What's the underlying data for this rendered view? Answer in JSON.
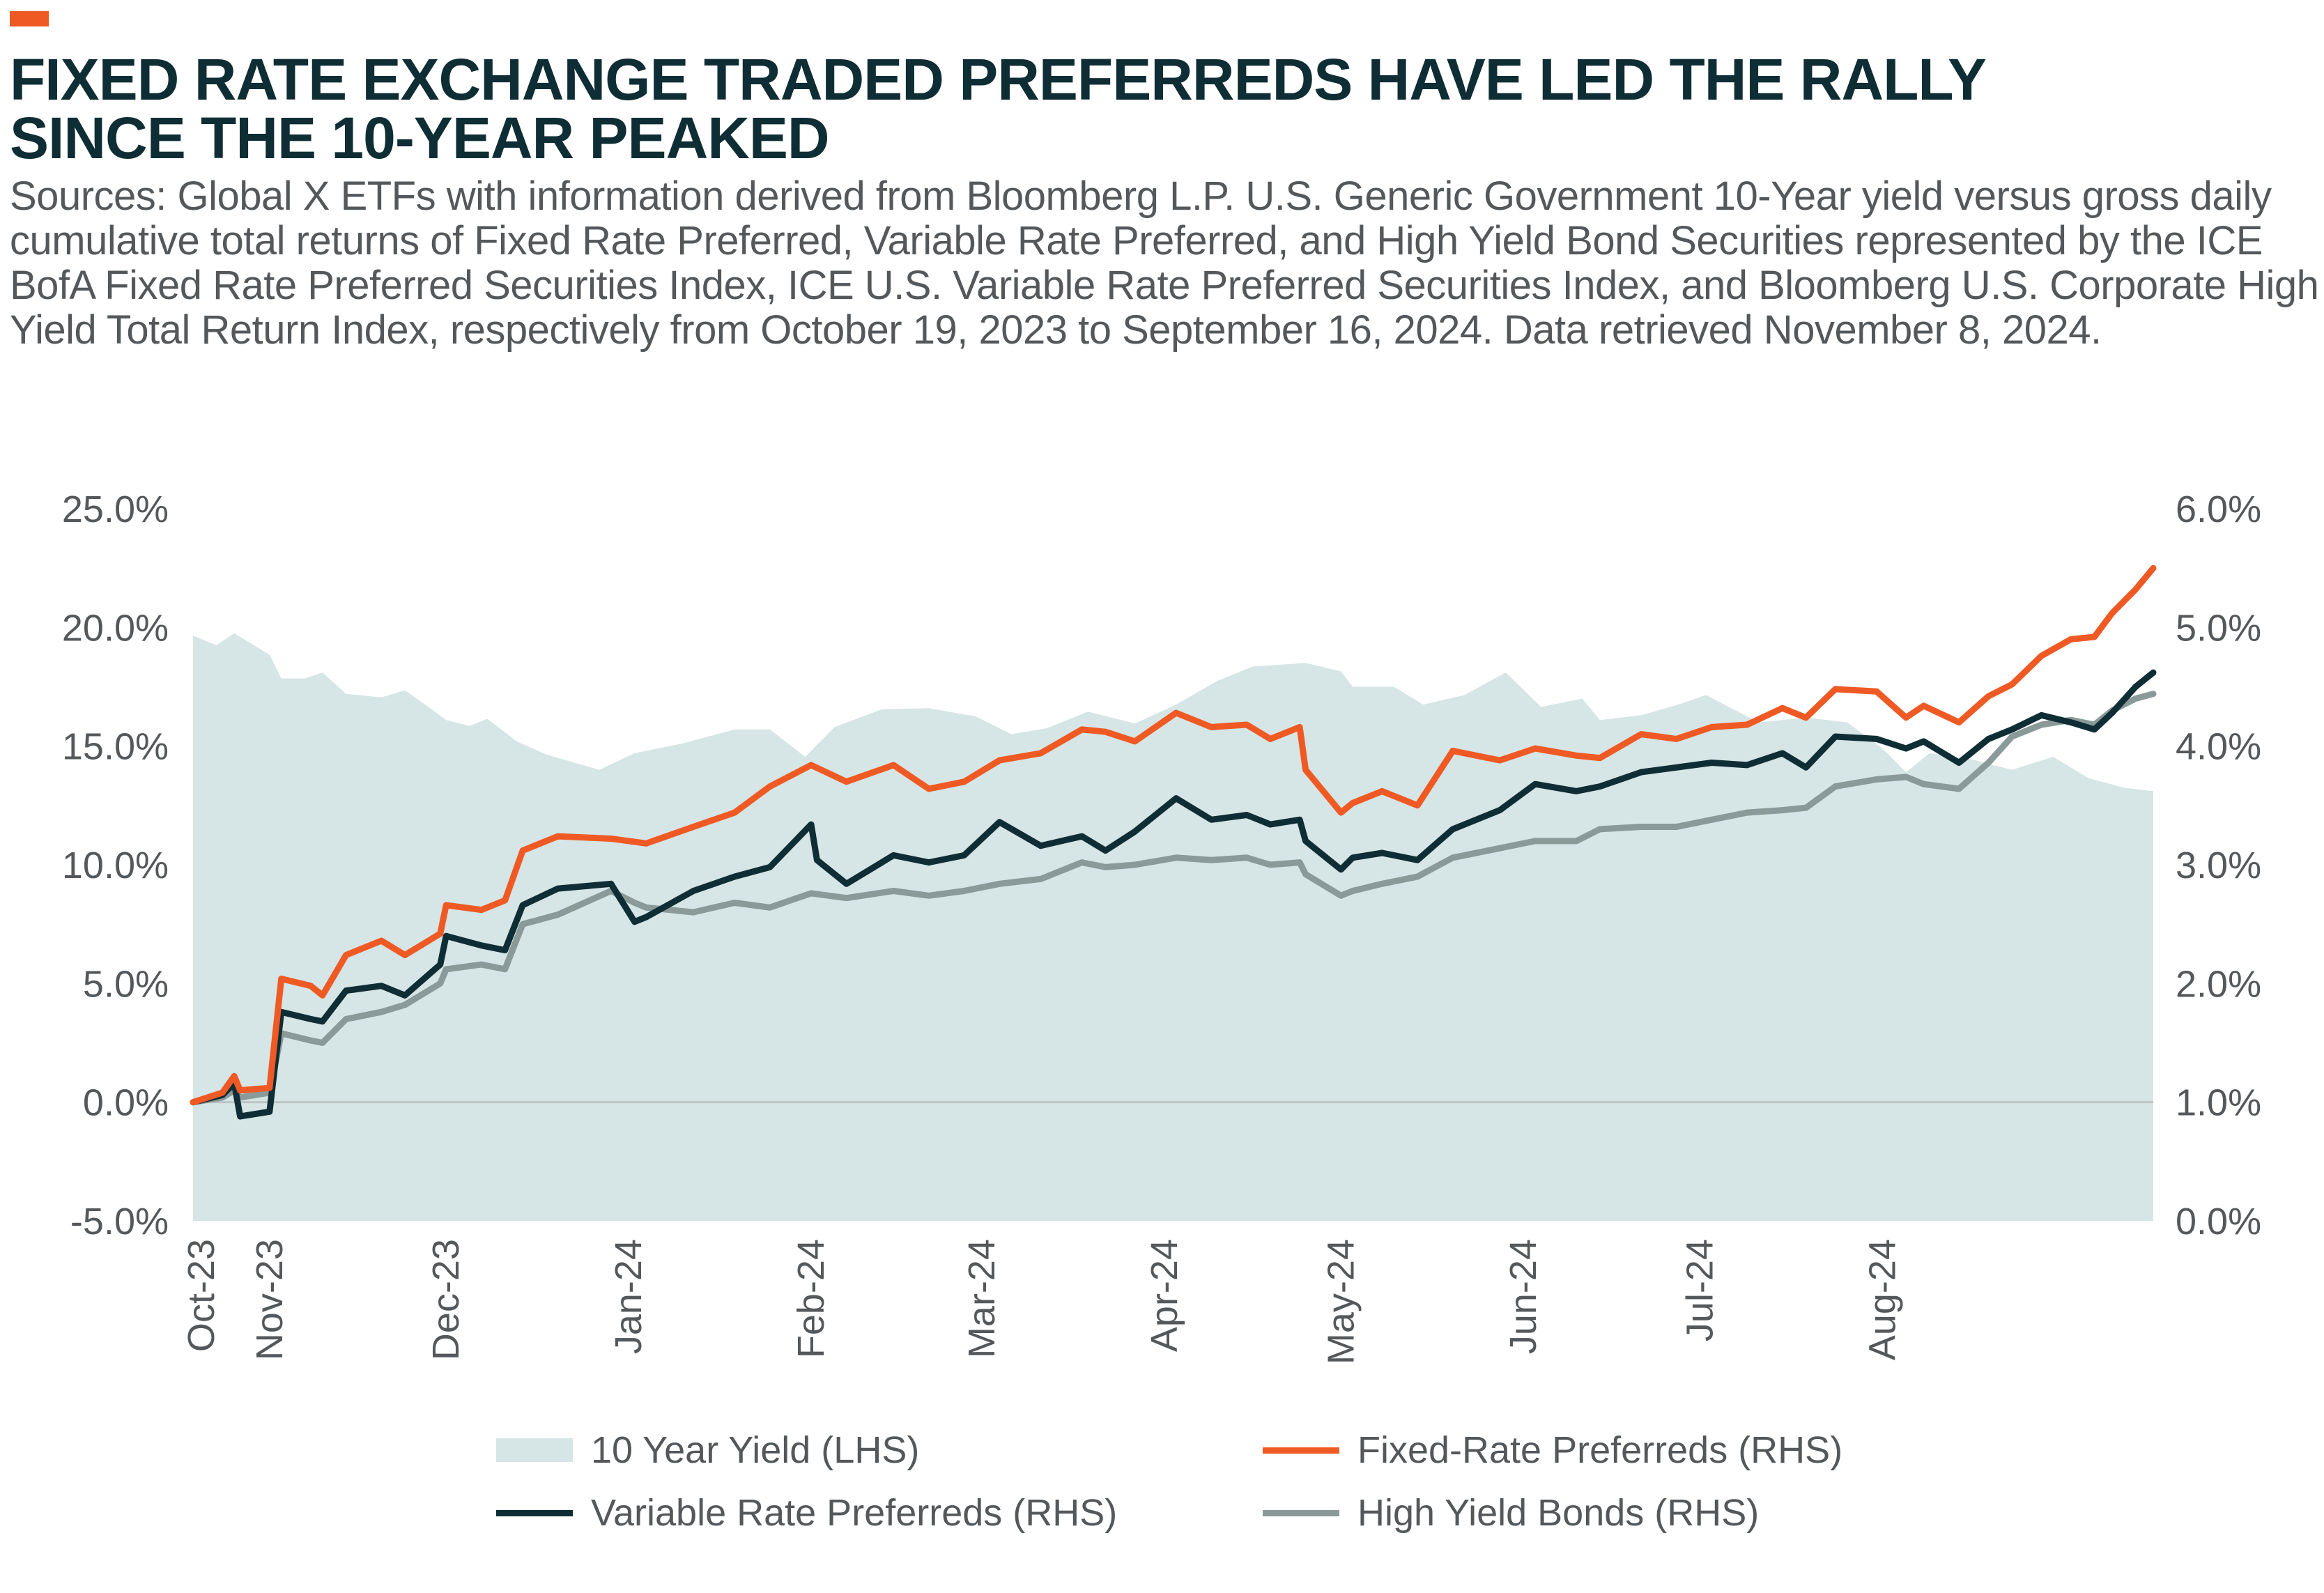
{
  "header": {
    "accent_color": "#ef5a24",
    "title": "FIXED RATE EXCHANGE TRADED PREFERREDS HAVE LED THE RALLY SINCE THE 10-YEAR PEAKED",
    "subtitle": "Sources: Global X ETFs with information derived from Bloomberg L.P. U.S. Generic Government 10-Year yield versus gross daily cumulative total returns of Fixed Rate Preferred, Variable Rate Preferred, and High Yield Bond Securities represented by the ICE BofA Fixed Rate Preferred Securities Index, ICE U.S. Variable Rate Preferred Securities Index, and Bloomberg U.S. Corporate High Yield Total Return Index, respectively from October 19, 2023 to September 16, 2024. Data retrieved November 8, 2024."
  },
  "chart_data": {
    "type": "line",
    "x_range": [
      "2023-10-19",
      "2024-09-16"
    ],
    "x_tick_labels": [
      "Oct-23",
      "Nov-23",
      "Dec-23",
      "Jan-24",
      "Feb-24",
      "Mar-24",
      "Apr-24",
      "May-24",
      "Jun-24",
      "Jul-24",
      "Aug-24"
    ],
    "left_axis": {
      "ylim": [
        -5,
        25
      ],
      "tick_labels": [
        "25.0%",
        "20.0%",
        "15.0%",
        "10.0%",
        "5.0%",
        "0.0%",
        "-5.0%"
      ]
    },
    "right_axis": {
      "ylim": [
        0,
        6
      ],
      "tick_labels": [
        "6.0%",
        "5.0%",
        "4.0%",
        "3.0%",
        "2.0%",
        "1.0%",
        "0.0%"
      ]
    },
    "grid": false,
    "legend_position": "bottom",
    "series": [
      {
        "name": "10 Year Yield (LHS)",
        "kind": "area",
        "axis": "right",
        "color": "#d6e5e5",
        "points": [
          [
            "2023-10-19",
            4.93
          ],
          [
            "2023-10-23",
            4.85
          ],
          [
            "2023-10-26",
            4.95
          ],
          [
            "2023-11-01",
            4.77
          ],
          [
            "2023-11-03",
            4.57
          ],
          [
            "2023-11-07",
            4.57
          ],
          [
            "2023-11-10",
            4.62
          ],
          [
            "2023-11-14",
            4.44
          ],
          [
            "2023-11-20",
            4.41
          ],
          [
            "2023-11-24",
            4.47
          ],
          [
            "2023-11-28",
            4.33
          ],
          [
            "2023-12-01",
            4.22
          ],
          [
            "2023-12-05",
            4.17
          ],
          [
            "2023-12-08",
            4.23
          ],
          [
            "2023-12-13",
            4.04
          ],
          [
            "2023-12-18",
            3.93
          ],
          [
            "2023-12-27",
            3.8
          ],
          [
            "2024-01-02",
            3.94
          ],
          [
            "2024-01-10",
            4.02
          ],
          [
            "2024-01-19",
            4.14
          ],
          [
            "2024-01-25",
            4.14
          ],
          [
            "2024-01-31",
            3.91
          ],
          [
            "2024-02-05",
            4.16
          ],
          [
            "2024-02-13",
            4.31
          ],
          [
            "2024-02-21",
            4.32
          ],
          [
            "2024-02-29",
            4.25
          ],
          [
            "2024-03-06",
            4.1
          ],
          [
            "2024-03-12",
            4.15
          ],
          [
            "2024-03-19",
            4.29
          ],
          [
            "2024-03-27",
            4.19
          ],
          [
            "2024-04-03",
            4.35
          ],
          [
            "2024-04-10",
            4.55
          ],
          [
            "2024-04-16",
            4.67
          ],
          [
            "2024-04-25",
            4.7
          ],
          [
            "2024-05-01",
            4.63
          ],
          [
            "2024-05-03",
            4.5
          ],
          [
            "2024-05-10",
            4.5
          ],
          [
            "2024-05-15",
            4.35
          ],
          [
            "2024-05-22",
            4.43
          ],
          [
            "2024-05-29",
            4.62
          ],
          [
            "2024-06-04",
            4.33
          ],
          [
            "2024-06-11",
            4.4
          ],
          [
            "2024-06-14",
            4.22
          ],
          [
            "2024-06-21",
            4.26
          ],
          [
            "2024-06-28",
            4.36
          ],
          [
            "2024-07-02",
            4.43
          ],
          [
            "2024-07-11",
            4.2
          ],
          [
            "2024-07-19",
            4.24
          ],
          [
            "2024-07-26",
            4.2
          ],
          [
            "2024-08-01",
            3.98
          ],
          [
            "2024-08-05",
            3.78
          ],
          [
            "2024-08-09",
            3.94
          ],
          [
            "2024-08-16",
            3.89
          ],
          [
            "2024-08-23",
            3.8
          ],
          [
            "2024-08-30",
            3.91
          ],
          [
            "2024-09-05",
            3.73
          ],
          [
            "2024-09-11",
            3.65
          ],
          [
            "2024-09-16",
            3.62
          ]
        ]
      },
      {
        "name": "Fixed-Rate Preferreds (RHS)",
        "kind": "line",
        "axis": "left",
        "color": "#ef5a24",
        "points": [
          [
            "2023-10-19",
            0.0
          ],
          [
            "2023-10-24",
            0.4
          ],
          [
            "2023-10-26",
            1.1
          ],
          [
            "2023-10-27",
            0.5
          ],
          [
            "2023-11-01",
            0.6
          ],
          [
            "2023-11-03",
            5.2
          ],
          [
            "2023-11-08",
            4.9
          ],
          [
            "2023-11-10",
            4.5
          ],
          [
            "2023-11-14",
            6.2
          ],
          [
            "2023-11-20",
            6.8
          ],
          [
            "2023-11-24",
            6.2
          ],
          [
            "2023-11-30",
            7.1
          ],
          [
            "2023-12-01",
            8.3
          ],
          [
            "2023-12-07",
            8.1
          ],
          [
            "2023-12-11",
            8.5
          ],
          [
            "2023-12-14",
            10.6
          ],
          [
            "2023-12-20",
            11.2
          ],
          [
            "2023-12-29",
            11.1
          ],
          [
            "2024-01-04",
            10.9
          ],
          [
            "2024-01-12",
            11.6
          ],
          [
            "2024-01-19",
            12.2
          ],
          [
            "2024-01-25",
            13.3
          ],
          [
            "2024-02-01",
            14.2
          ],
          [
            "2024-02-07",
            13.5
          ],
          [
            "2024-02-15",
            14.2
          ],
          [
            "2024-02-21",
            13.2
          ],
          [
            "2024-02-27",
            13.5
          ],
          [
            "2024-03-04",
            14.4
          ],
          [
            "2024-03-11",
            14.7
          ],
          [
            "2024-03-18",
            15.7
          ],
          [
            "2024-03-22",
            15.6
          ],
          [
            "2024-03-27",
            15.2
          ],
          [
            "2024-04-03",
            16.4
          ],
          [
            "2024-04-09",
            15.8
          ],
          [
            "2024-04-15",
            15.9
          ],
          [
            "2024-04-19",
            15.3
          ],
          [
            "2024-04-24",
            15.8
          ],
          [
            "2024-04-25",
            14.0
          ],
          [
            "2024-05-01",
            12.2
          ],
          [
            "2024-05-03",
            12.6
          ],
          [
            "2024-05-08",
            13.1
          ],
          [
            "2024-05-14",
            12.5
          ],
          [
            "2024-05-20",
            14.8
          ],
          [
            "2024-05-28",
            14.4
          ],
          [
            "2024-06-03",
            14.9
          ],
          [
            "2024-06-10",
            14.6
          ],
          [
            "2024-06-14",
            14.5
          ],
          [
            "2024-06-21",
            15.5
          ],
          [
            "2024-06-27",
            15.3
          ],
          [
            "2024-07-03",
            15.8
          ],
          [
            "2024-07-09",
            15.9
          ],
          [
            "2024-07-15",
            16.6
          ],
          [
            "2024-07-19",
            16.2
          ],
          [
            "2024-07-24",
            17.4
          ],
          [
            "2024-07-31",
            17.3
          ],
          [
            "2024-08-05",
            16.2
          ],
          [
            "2024-08-08",
            16.7
          ],
          [
            "2024-08-14",
            16.0
          ],
          [
            "2024-08-19",
            17.1
          ],
          [
            "2024-08-23",
            17.6
          ],
          [
            "2024-08-28",
            18.8
          ],
          [
            "2024-09-02",
            19.5
          ],
          [
            "2024-09-06",
            19.6
          ],
          [
            "2024-09-09",
            20.6
          ],
          [
            "2024-09-13",
            21.6
          ],
          [
            "2024-09-16",
            22.5
          ]
        ]
      },
      {
        "name": "Variable Rate Preferreds (RHS)",
        "kind": "line",
        "axis": "left",
        "color": "#0f2d34",
        "points": [
          [
            "2023-10-19",
            0.0
          ],
          [
            "2023-10-24",
            0.3
          ],
          [
            "2023-10-26",
            0.8
          ],
          [
            "2023-10-27",
            -0.6
          ],
          [
            "2023-11-01",
            -0.4
          ],
          [
            "2023-11-03",
            3.8
          ],
          [
            "2023-11-08",
            3.5
          ],
          [
            "2023-11-10",
            3.4
          ],
          [
            "2023-11-14",
            4.7
          ],
          [
            "2023-11-20",
            4.9
          ],
          [
            "2023-11-24",
            4.5
          ],
          [
            "2023-11-30",
            5.8
          ],
          [
            "2023-12-01",
            7.0
          ],
          [
            "2023-12-07",
            6.6
          ],
          [
            "2023-12-11",
            6.4
          ],
          [
            "2023-12-14",
            8.3
          ],
          [
            "2023-12-20",
            9.0
          ],
          [
            "2023-12-29",
            9.2
          ],
          [
            "2024-01-02",
            7.6
          ],
          [
            "2024-01-04",
            7.8
          ],
          [
            "2024-01-12",
            8.9
          ],
          [
            "2024-01-19",
            9.5
          ],
          [
            "2024-01-25",
            9.9
          ],
          [
            "2024-02-01",
            11.7
          ],
          [
            "2024-02-02",
            10.2
          ],
          [
            "2024-02-07",
            9.2
          ],
          [
            "2024-02-15",
            10.4
          ],
          [
            "2024-02-21",
            10.1
          ],
          [
            "2024-02-27",
            10.4
          ],
          [
            "2024-03-04",
            11.8
          ],
          [
            "2024-03-11",
            10.8
          ],
          [
            "2024-03-18",
            11.2
          ],
          [
            "2024-03-22",
            10.6
          ],
          [
            "2024-03-27",
            11.4
          ],
          [
            "2024-04-03",
            12.8
          ],
          [
            "2024-04-09",
            11.9
          ],
          [
            "2024-04-15",
            12.1
          ],
          [
            "2024-04-19",
            11.7
          ],
          [
            "2024-04-24",
            11.9
          ],
          [
            "2024-04-25",
            11.0
          ],
          [
            "2024-05-01",
            9.8
          ],
          [
            "2024-05-03",
            10.3
          ],
          [
            "2024-05-08",
            10.5
          ],
          [
            "2024-05-14",
            10.2
          ],
          [
            "2024-05-20",
            11.5
          ],
          [
            "2024-05-28",
            12.3
          ],
          [
            "2024-06-03",
            13.4
          ],
          [
            "2024-06-10",
            13.1
          ],
          [
            "2024-06-14",
            13.3
          ],
          [
            "2024-06-21",
            13.9
          ],
          [
            "2024-06-27",
            14.1
          ],
          [
            "2024-07-03",
            14.3
          ],
          [
            "2024-07-09",
            14.2
          ],
          [
            "2024-07-15",
            14.7
          ],
          [
            "2024-07-19",
            14.1
          ],
          [
            "2024-07-24",
            15.4
          ],
          [
            "2024-07-31",
            15.3
          ],
          [
            "2024-08-05",
            14.9
          ],
          [
            "2024-08-08",
            15.2
          ],
          [
            "2024-08-14",
            14.3
          ],
          [
            "2024-08-19",
            15.3
          ],
          [
            "2024-08-23",
            15.7
          ],
          [
            "2024-08-28",
            16.3
          ],
          [
            "2024-09-02",
            16.0
          ],
          [
            "2024-09-06",
            15.7
          ],
          [
            "2024-09-09",
            16.4
          ],
          [
            "2024-09-13",
            17.5
          ],
          [
            "2024-09-16",
            18.1
          ]
        ]
      },
      {
        "name": "High Yield Bonds (RHS)",
        "kind": "line",
        "axis": "left",
        "color": "#8a9a99",
        "points": [
          [
            "2023-10-19",
            0.0
          ],
          [
            "2023-10-24",
            0.2
          ],
          [
            "2023-10-26",
            0.5
          ],
          [
            "2023-10-27",
            0.2
          ],
          [
            "2023-11-01",
            0.4
          ],
          [
            "2023-11-03",
            2.9
          ],
          [
            "2023-11-08",
            2.6
          ],
          [
            "2023-11-10",
            2.5
          ],
          [
            "2023-11-14",
            3.5
          ],
          [
            "2023-11-20",
            3.8
          ],
          [
            "2023-11-24",
            4.1
          ],
          [
            "2023-11-30",
            5.0
          ],
          [
            "2023-12-01",
            5.6
          ],
          [
            "2023-12-07",
            5.8
          ],
          [
            "2023-12-11",
            5.6
          ],
          [
            "2023-12-14",
            7.5
          ],
          [
            "2023-12-20",
            7.9
          ],
          [
            "2023-12-29",
            8.9
          ],
          [
            "2024-01-02",
            8.4
          ],
          [
            "2024-01-04",
            8.2
          ],
          [
            "2024-01-12",
            8.0
          ],
          [
            "2024-01-19",
            8.4
          ],
          [
            "2024-01-25",
            8.2
          ],
          [
            "2024-02-01",
            8.8
          ],
          [
            "2024-02-07",
            8.6
          ],
          [
            "2024-02-15",
            8.9
          ],
          [
            "2024-02-21",
            8.7
          ],
          [
            "2024-02-27",
            8.9
          ],
          [
            "2024-03-04",
            9.2
          ],
          [
            "2024-03-11",
            9.4
          ],
          [
            "2024-03-18",
            10.1
          ],
          [
            "2024-03-22",
            9.9
          ],
          [
            "2024-03-27",
            10.0
          ],
          [
            "2024-04-03",
            10.3
          ],
          [
            "2024-04-09",
            10.2
          ],
          [
            "2024-04-15",
            10.3
          ],
          [
            "2024-04-19",
            10.0
          ],
          [
            "2024-04-24",
            10.1
          ],
          [
            "2024-04-25",
            9.6
          ],
          [
            "2024-05-01",
            8.7
          ],
          [
            "2024-05-03",
            8.9
          ],
          [
            "2024-05-08",
            9.2
          ],
          [
            "2024-05-14",
            9.5
          ],
          [
            "2024-05-20",
            10.3
          ],
          [
            "2024-05-28",
            10.7
          ],
          [
            "2024-06-03",
            11.0
          ],
          [
            "2024-06-10",
            11.0
          ],
          [
            "2024-06-14",
            11.5
          ],
          [
            "2024-06-21",
            11.6
          ],
          [
            "2024-06-27",
            11.6
          ],
          [
            "2024-07-03",
            11.9
          ],
          [
            "2024-07-09",
            12.2
          ],
          [
            "2024-07-15",
            12.3
          ],
          [
            "2024-07-19",
            12.4
          ],
          [
            "2024-07-24",
            13.3
          ],
          [
            "2024-07-31",
            13.6
          ],
          [
            "2024-08-05",
            13.7
          ],
          [
            "2024-08-08",
            13.4
          ],
          [
            "2024-08-14",
            13.2
          ],
          [
            "2024-08-19",
            14.3
          ],
          [
            "2024-08-23",
            15.4
          ],
          [
            "2024-08-28",
            15.9
          ],
          [
            "2024-09-02",
            16.1
          ],
          [
            "2024-09-06",
            15.9
          ],
          [
            "2024-09-09",
            16.5
          ],
          [
            "2024-09-13",
            17.0
          ],
          [
            "2024-09-16",
            17.2
          ]
        ]
      }
    ]
  },
  "legend": {
    "items": [
      {
        "label": "10 Year Yield (LHS)"
      },
      {
        "label": "Fixed-Rate Preferreds (RHS)"
      },
      {
        "label": "Variable Rate Preferreds (RHS)"
      },
      {
        "label": "High Yield Bonds (RHS)"
      }
    ]
  }
}
